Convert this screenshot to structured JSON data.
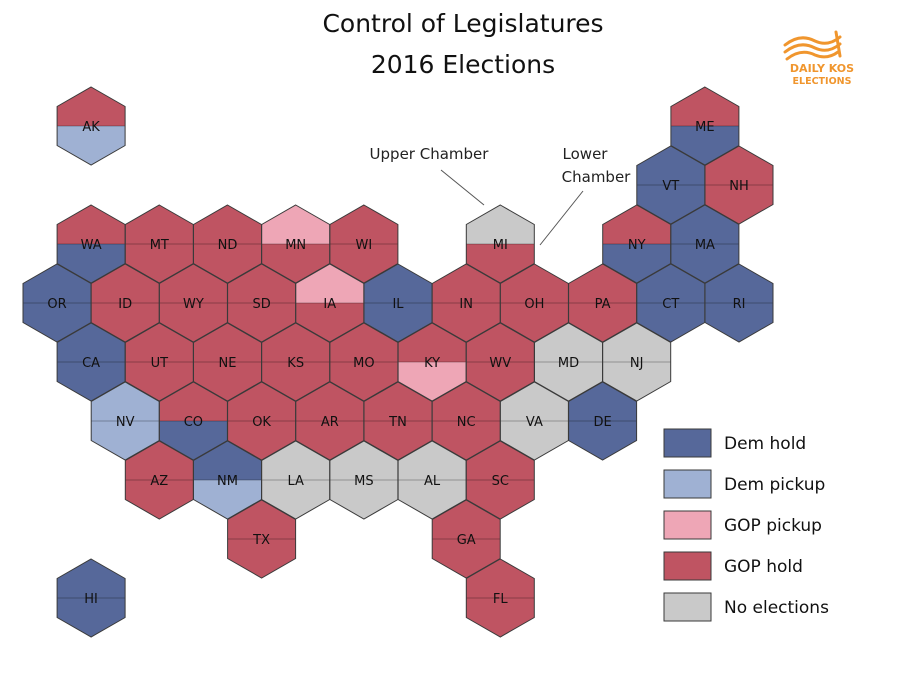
{
  "title": {
    "line1": "Control of Legislatures",
    "line2": "2016 Elections"
  },
  "logo": {
    "line1": "DAILY KOS",
    "line2": "ELECTIONS",
    "color": "#f0962e"
  },
  "annotations": {
    "upper": "Upper Chamber",
    "lower_line1": "Lower",
    "lower_line2": "Chamber"
  },
  "colors": {
    "dem_hold": "#56689a",
    "dem_pickup": "#9fb1d3",
    "gop_pickup": "#eea6b6",
    "gop_hold": "#bf5462",
    "no_elections": "#c9c9c9"
  },
  "legend": [
    {
      "key": "dem_hold",
      "label": "Dem hold"
    },
    {
      "key": "dem_pickup",
      "label": "Dem pickup"
    },
    {
      "key": "gop_pickup",
      "label": "GOP pickup"
    },
    {
      "key": "gop_hold",
      "label": "GOP hold"
    },
    {
      "key": "no_elections",
      "label": "No elections"
    }
  ],
  "states": [
    {
      "abbr": "AK",
      "col": 1,
      "row": 0,
      "upper": "gop_hold",
      "lower": "dem_pickup"
    },
    {
      "abbr": "ME",
      "col": 19,
      "row": 0,
      "upper": "gop_hold",
      "lower": "dem_hold"
    },
    {
      "abbr": "VT",
      "col": 18,
      "row": 1,
      "upper": "dem_hold",
      "lower": "dem_hold"
    },
    {
      "abbr": "NH",
      "col": 20,
      "row": 1,
      "upper": "gop_hold",
      "lower": "gop_hold"
    },
    {
      "abbr": "WA",
      "col": 1,
      "row": 2,
      "upper": "gop_hold",
      "lower": "dem_hold"
    },
    {
      "abbr": "MT",
      "col": 3,
      "row": 2,
      "upper": "gop_hold",
      "lower": "gop_hold"
    },
    {
      "abbr": "ND",
      "col": 5,
      "row": 2,
      "upper": "gop_hold",
      "lower": "gop_hold"
    },
    {
      "abbr": "MN",
      "col": 7,
      "row": 2,
      "upper": "gop_pickup",
      "lower": "gop_hold"
    },
    {
      "abbr": "WI",
      "col": 9,
      "row": 2,
      "upper": "gop_hold",
      "lower": "gop_hold"
    },
    {
      "abbr": "MI",
      "col": 13,
      "row": 2,
      "upper": "no_elections",
      "lower": "gop_hold"
    },
    {
      "abbr": "NY",
      "col": 17,
      "row": 2,
      "upper": "gop_hold",
      "lower": "dem_hold"
    },
    {
      "abbr": "MA",
      "col": 19,
      "row": 2,
      "upper": "dem_hold",
      "lower": "dem_hold"
    },
    {
      "abbr": "OR",
      "col": 0,
      "row": 3,
      "upper": "dem_hold",
      "lower": "dem_hold"
    },
    {
      "abbr": "ID",
      "col": 2,
      "row": 3,
      "upper": "gop_hold",
      "lower": "gop_hold"
    },
    {
      "abbr": "WY",
      "col": 4,
      "row": 3,
      "upper": "gop_hold",
      "lower": "gop_hold"
    },
    {
      "abbr": "SD",
      "col": 6,
      "row": 3,
      "upper": "gop_hold",
      "lower": "gop_hold"
    },
    {
      "abbr": "IA",
      "col": 8,
      "row": 3,
      "upper": "gop_pickup",
      "lower": "gop_hold"
    },
    {
      "abbr": "IL",
      "col": 10,
      "row": 3,
      "upper": "dem_hold",
      "lower": "dem_hold"
    },
    {
      "abbr": "IN",
      "col": 12,
      "row": 3,
      "upper": "gop_hold",
      "lower": "gop_hold"
    },
    {
      "abbr": "OH",
      "col": 14,
      "row": 3,
      "upper": "gop_hold",
      "lower": "gop_hold"
    },
    {
      "abbr": "PA",
      "col": 16,
      "row": 3,
      "upper": "gop_hold",
      "lower": "gop_hold"
    },
    {
      "abbr": "CT",
      "col": 18,
      "row": 3,
      "upper": "dem_hold",
      "lower": "dem_hold"
    },
    {
      "abbr": "RI",
      "col": 20,
      "row": 3,
      "upper": "dem_hold",
      "lower": "dem_hold"
    },
    {
      "abbr": "CA",
      "col": 1,
      "row": 4,
      "upper": "dem_hold",
      "lower": "dem_hold"
    },
    {
      "abbr": "UT",
      "col": 3,
      "row": 4,
      "upper": "gop_hold",
      "lower": "gop_hold"
    },
    {
      "abbr": "NE",
      "col": 5,
      "row": 4,
      "upper": "gop_hold",
      "lower": "gop_hold"
    },
    {
      "abbr": "KS",
      "col": 7,
      "row": 4,
      "upper": "gop_hold",
      "lower": "gop_hold"
    },
    {
      "abbr": "MO",
      "col": 9,
      "row": 4,
      "upper": "gop_hold",
      "lower": "gop_hold"
    },
    {
      "abbr": "KY",
      "col": 11,
      "row": 4,
      "upper": "gop_hold",
      "lower": "gop_pickup"
    },
    {
      "abbr": "WV",
      "col": 13,
      "row": 4,
      "upper": "gop_hold",
      "lower": "gop_hold"
    },
    {
      "abbr": "MD",
      "col": 15,
      "row": 4,
      "upper": "no_elections",
      "lower": "no_elections"
    },
    {
      "abbr": "NJ",
      "col": 17,
      "row": 4,
      "upper": "no_elections",
      "lower": "no_elections"
    },
    {
      "abbr": "NV",
      "col": 2,
      "row": 5,
      "upper": "dem_pickup",
      "lower": "dem_pickup"
    },
    {
      "abbr": "CO",
      "col": 4,
      "row": 5,
      "upper": "gop_hold",
      "lower": "dem_hold"
    },
    {
      "abbr": "OK",
      "col": 6,
      "row": 5,
      "upper": "gop_hold",
      "lower": "gop_hold"
    },
    {
      "abbr": "AR",
      "col": 8,
      "row": 5,
      "upper": "gop_hold",
      "lower": "gop_hold"
    },
    {
      "abbr": "TN",
      "col": 10,
      "row": 5,
      "upper": "gop_hold",
      "lower": "gop_hold"
    },
    {
      "abbr": "NC",
      "col": 12,
      "row": 5,
      "upper": "gop_hold",
      "lower": "gop_hold"
    },
    {
      "abbr": "VA",
      "col": 14,
      "row": 5,
      "upper": "no_elections",
      "lower": "no_elections"
    },
    {
      "abbr": "DE",
      "col": 16,
      "row": 5,
      "upper": "dem_hold",
      "lower": "dem_hold"
    },
    {
      "abbr": "AZ",
      "col": 3,
      "row": 6,
      "upper": "gop_hold",
      "lower": "gop_hold"
    },
    {
      "abbr": "NM",
      "col": 5,
      "row": 6,
      "upper": "dem_hold",
      "lower": "dem_pickup"
    },
    {
      "abbr": "LA",
      "col": 7,
      "row": 6,
      "upper": "no_elections",
      "lower": "no_elections"
    },
    {
      "abbr": "MS",
      "col": 9,
      "row": 6,
      "upper": "no_elections",
      "lower": "no_elections"
    },
    {
      "abbr": "AL",
      "col": 11,
      "row": 6,
      "upper": "no_elections",
      "lower": "no_elections"
    },
    {
      "abbr": "SC",
      "col": 13,
      "row": 6,
      "upper": "gop_hold",
      "lower": "gop_hold"
    },
    {
      "abbr": "TX",
      "col": 6,
      "row": 7,
      "upper": "gop_hold",
      "lower": "gop_hold"
    },
    {
      "abbr": "GA",
      "col": 12,
      "row": 7,
      "upper": "gop_hold",
      "lower": "gop_hold"
    },
    {
      "abbr": "HI",
      "col": 1,
      "row": 8,
      "upper": "dem_hold",
      "lower": "dem_hold"
    },
    {
      "abbr": "FL",
      "col": 13,
      "row": 8,
      "upper": "gop_hold",
      "lower": "gop_hold"
    }
  ]
}
